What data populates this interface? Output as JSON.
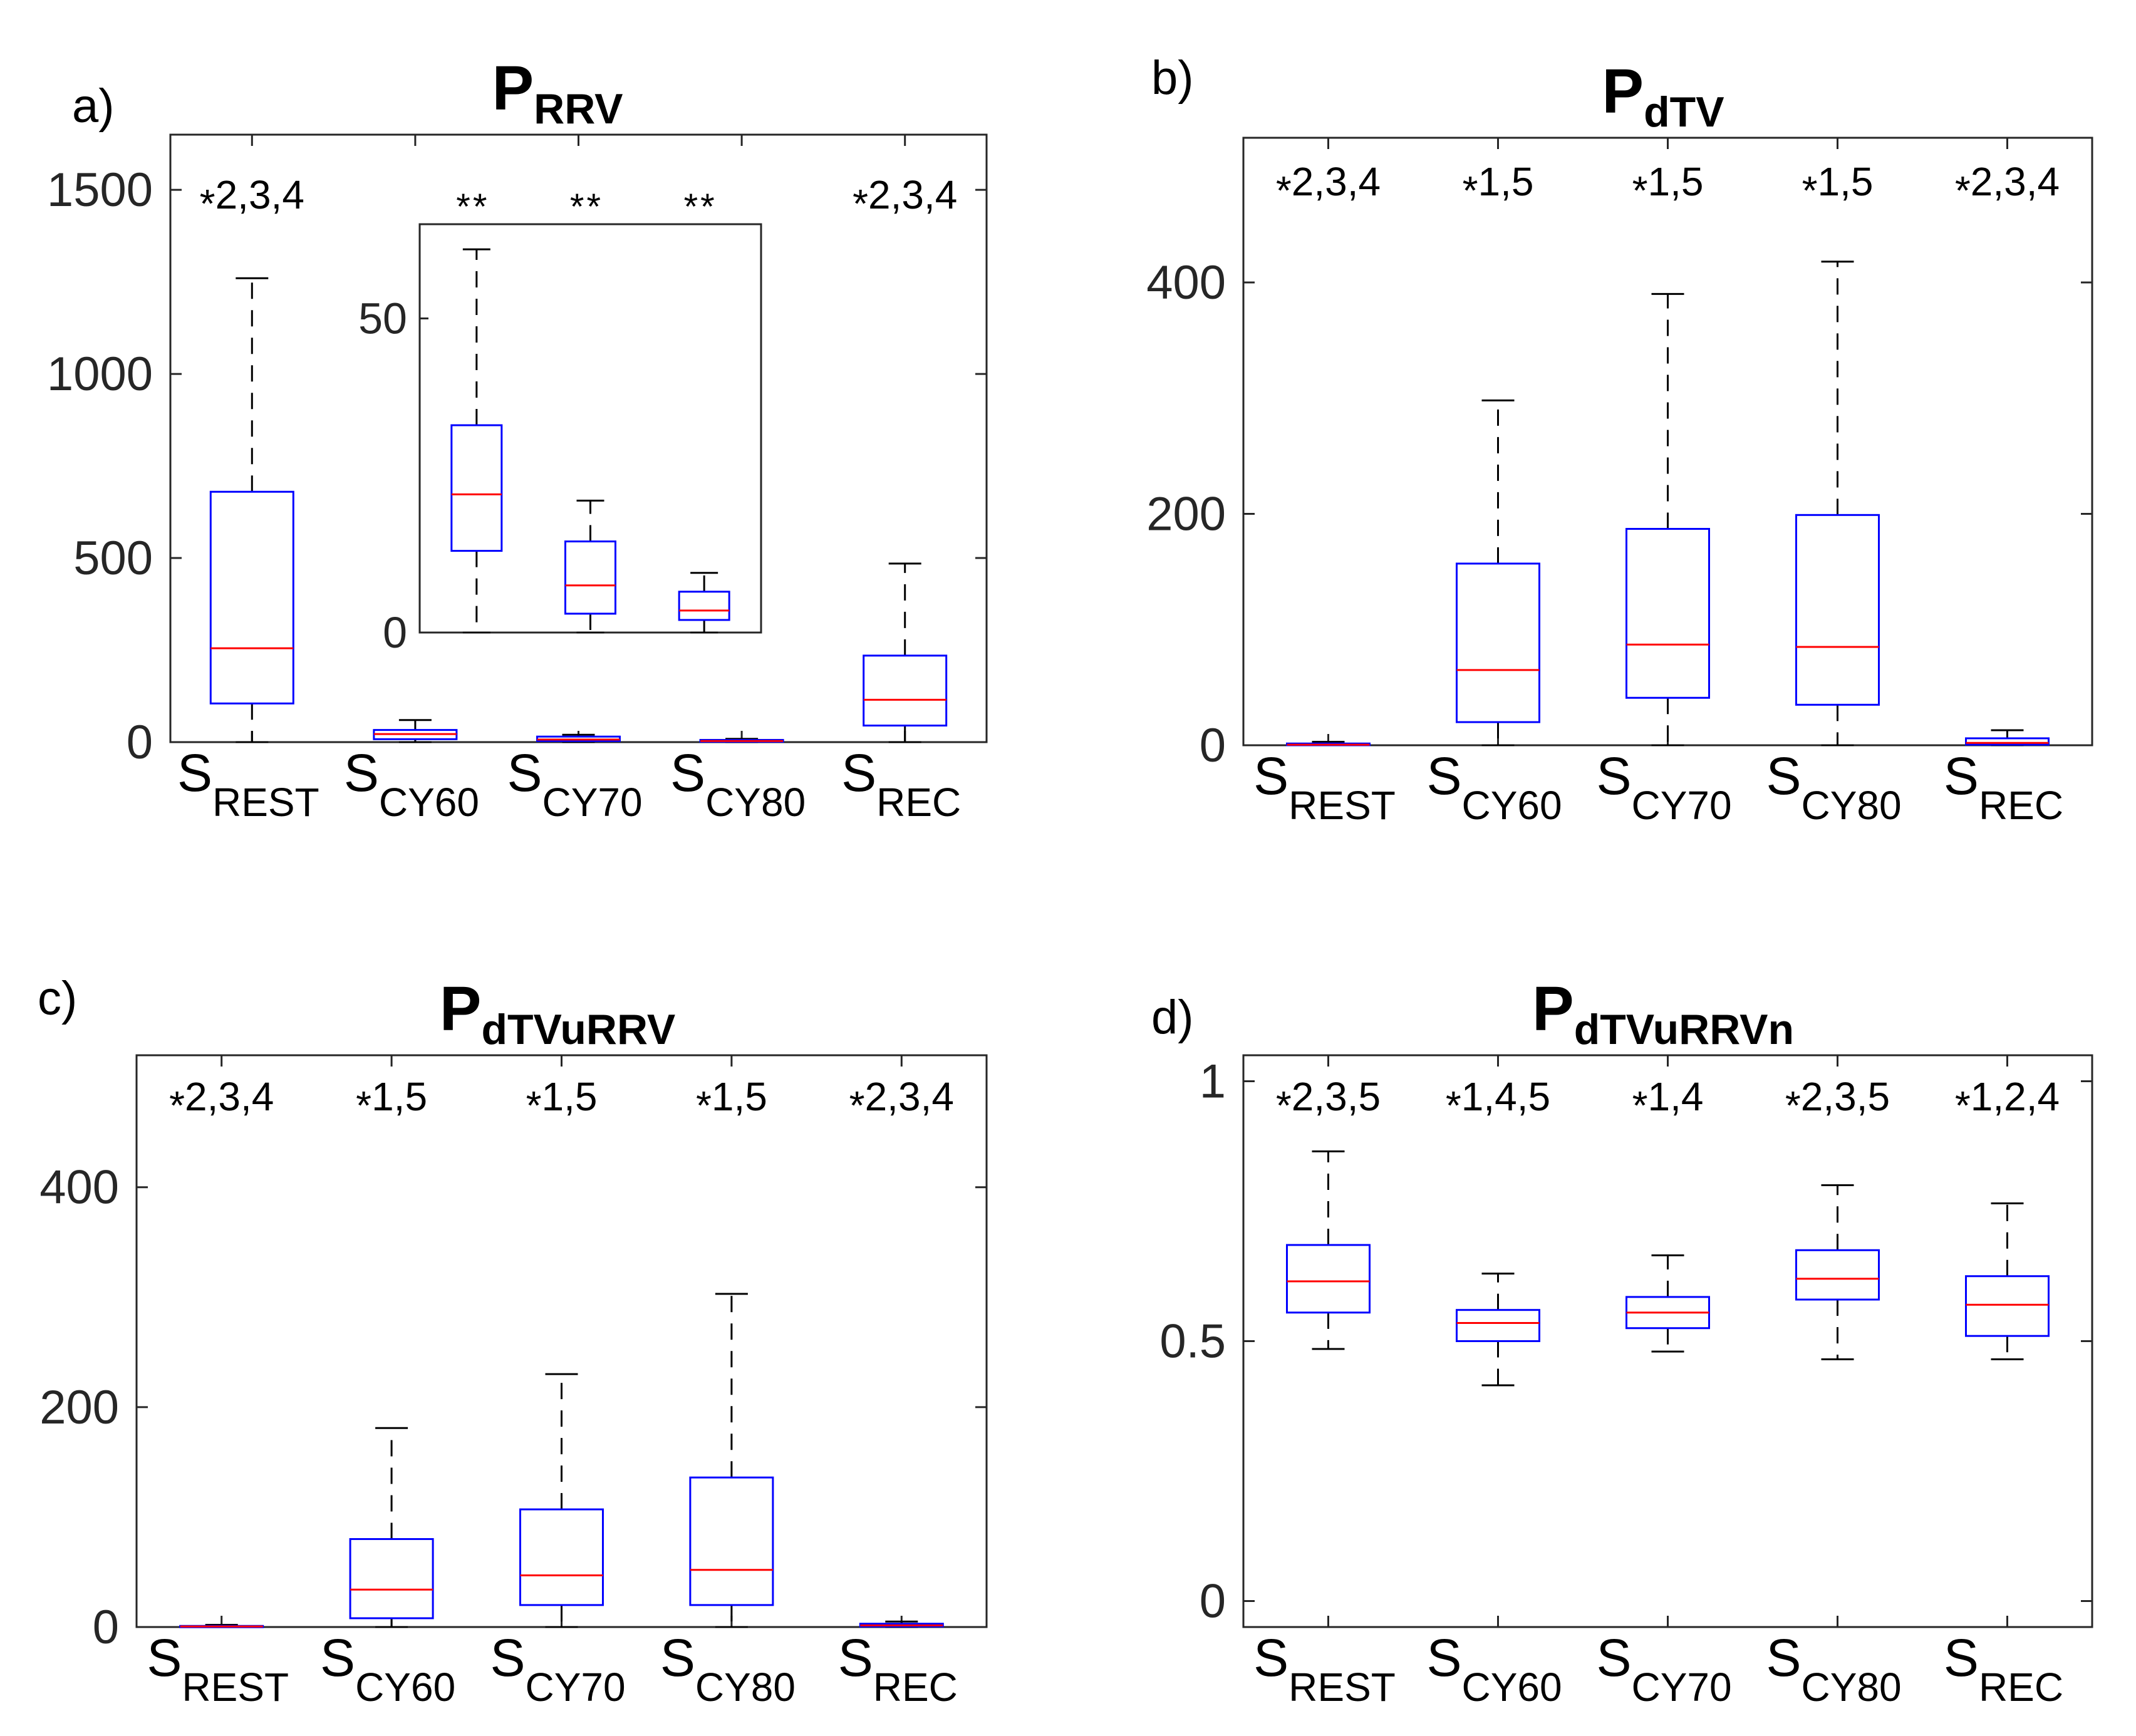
{
  "figure": {
    "colors": {
      "box": "#0000ff",
      "median": "#ff0000",
      "whisker": "#000000",
      "axis": "#262626"
    }
  },
  "chart_data": [
    {
      "type": "box",
      "panel": "a)",
      "title": {
        "main": "P",
        "sub": "RRV"
      },
      "categories": [
        {
          "main": "S",
          "sub": "REST"
        },
        {
          "main": "S",
          "sub": "CY60"
        },
        {
          "main": "S",
          "sub": "CY70"
        },
        {
          "main": "S",
          "sub": "CY80"
        },
        {
          "main": "S",
          "sub": "REC"
        }
      ],
      "ylim": [
        0,
        1650
      ],
      "yticks": [
        0,
        500,
        1000,
        1500
      ],
      "ytick_labels": [
        "0",
        "500",
        "1000",
        "1500"
      ],
      "boxes": [
        {
          "min": 0,
          "q1": 105,
          "median": 255,
          "q3": 680,
          "max": 1260
        },
        {
          "min": 0,
          "q1": 8,
          "median": 22,
          "q3": 33,
          "max": 60
        },
        {
          "min": 0,
          "q1": 3,
          "median": 7,
          "q3": 15,
          "max": 20
        },
        {
          "min": 0,
          "q1": 1,
          "median": 3,
          "q3": 6,
          "max": 9
        },
        {
          "min": 0,
          "q1": 45,
          "median": 115,
          "q3": 235,
          "max": 485
        }
      ],
      "annotations": [
        "*2,3,4",
        "",
        "",
        "",
        "*2,3,4"
      ],
      "inset": {
        "ylim": [
          0,
          65
        ],
        "yticks": [
          0,
          50
        ],
        "ytick_labels": [
          "0",
          "50"
        ],
        "annotations": [
          "**",
          "**",
          "**"
        ],
        "boxes": [
          {
            "min": 0,
            "q1": 13,
            "median": 22,
            "q3": 33,
            "max": 61
          },
          {
            "min": 0,
            "q1": 3,
            "median": 7.5,
            "q3": 14.5,
            "max": 21
          },
          {
            "min": 0,
            "q1": 2,
            "median": 3.5,
            "q3": 6.5,
            "max": 9.5
          }
        ]
      }
    },
    {
      "type": "box",
      "panel": "b)",
      "title": {
        "main": "P",
        "sub": "dTV"
      },
      "categories": [
        {
          "main": "S",
          "sub": "REST"
        },
        {
          "main": "S",
          "sub": "CY60"
        },
        {
          "main": "S",
          "sub": "CY70"
        },
        {
          "main": "S",
          "sub": "CY80"
        },
        {
          "main": "S",
          "sub": "REC"
        }
      ],
      "ylim": [
        0,
        525
      ],
      "yticks": [
        0,
        200,
        400
      ],
      "ytick_labels": [
        "0",
        "200",
        "400"
      ],
      "boxes": [
        {
          "min": 0,
          "q1": 0,
          "median": 0.5,
          "q3": 1.5,
          "max": 3
        },
        {
          "min": 0,
          "q1": 20,
          "median": 65,
          "q3": 157,
          "max": 298
        },
        {
          "min": 0,
          "q1": 41,
          "median": 87,
          "q3": 187,
          "max": 390
        },
        {
          "min": 0,
          "q1": 35,
          "median": 85,
          "q3": 199,
          "max": 418
        },
        {
          "min": 0,
          "q1": 0.5,
          "median": 2,
          "q3": 6,
          "max": 13
        }
      ],
      "annotations": [
        "*2,3,4",
        "*1,5",
        "*1,5",
        "*1,5",
        "*2,3,4"
      ]
    },
    {
      "type": "box",
      "panel": "c)",
      "title": {
        "main": "P",
        "sub": "dTVuRRV"
      },
      "categories": [
        {
          "main": "S",
          "sub": "REST"
        },
        {
          "main": "S",
          "sub": "CY60"
        },
        {
          "main": "S",
          "sub": "CY70"
        },
        {
          "main": "S",
          "sub": "CY80"
        },
        {
          "main": "S",
          "sub": "REC"
        }
      ],
      "ylim": [
        0,
        520
      ],
      "yticks": [
        0,
        200,
        400
      ],
      "ytick_labels": [
        "0",
        "200",
        "400"
      ],
      "boxes": [
        {
          "min": 0,
          "q1": 0,
          "median": 0.5,
          "q3": 1,
          "max": 2
        },
        {
          "min": 0,
          "q1": 8,
          "median": 34,
          "q3": 80,
          "max": 181
        },
        {
          "min": 0,
          "q1": 20,
          "median": 47,
          "q3": 107,
          "max": 230
        },
        {
          "min": 0,
          "q1": 20,
          "median": 52,
          "q3": 136,
          "max": 303
        },
        {
          "min": 0,
          "q1": 0.5,
          "median": 1.5,
          "q3": 3,
          "max": 5
        }
      ],
      "annotations": [
        "*2,3,4",
        "*1,5",
        "*1,5",
        "*1,5",
        "*2,3,4"
      ]
    },
    {
      "type": "box",
      "panel": "d)",
      "title": {
        "main": "P",
        "sub": "dTVuRRVn"
      },
      "categories": [
        {
          "main": "S",
          "sub": "REST"
        },
        {
          "main": "S",
          "sub": "CY60"
        },
        {
          "main": "S",
          "sub": "CY70"
        },
        {
          "main": "S",
          "sub": "CY80"
        },
        {
          "main": "S",
          "sub": "REC"
        }
      ],
      "ylim": [
        -0.05,
        1.05
      ],
      "yticks": [
        0,
        0.5,
        1
      ],
      "ytick_labels": [
        "0",
        "0.5",
        "1"
      ],
      "boxes": [
        {
          "min": 0.485,
          "q1": 0.555,
          "median": 0.615,
          "q3": 0.685,
          "max": 0.865
        },
        {
          "min": 0.415,
          "q1": 0.5,
          "median": 0.535,
          "q3": 0.56,
          "max": 0.63
        },
        {
          "min": 0.48,
          "q1": 0.525,
          "median": 0.555,
          "q3": 0.585,
          "max": 0.665
        },
        {
          "min": 0.465,
          "q1": 0.58,
          "median": 0.62,
          "q3": 0.675,
          "max": 0.8
        },
        {
          "min": 0.465,
          "q1": 0.51,
          "median": 0.57,
          "q3": 0.625,
          "max": 0.765
        }
      ],
      "annotations": [
        "*2,3,5",
        "*1,4,5",
        "*1,4",
        "*2,3,5",
        "*1,2,4"
      ]
    }
  ]
}
